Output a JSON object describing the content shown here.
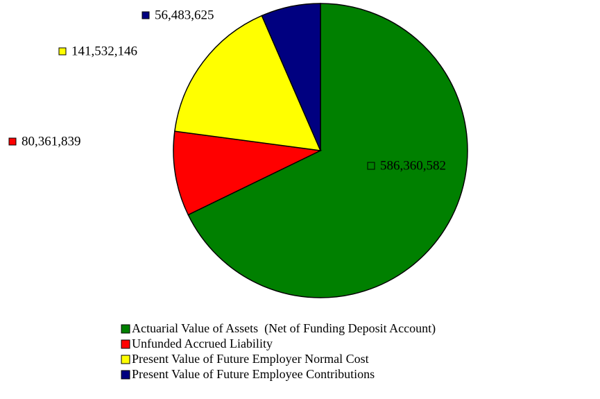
{
  "chart_data": {
    "type": "pie",
    "categories": [
      "Actuarial Value of Assets  (Net of Funding Deposit Account)",
      "Unfunded Accrued Liability",
      "Present Value of Future Employer Normal Cost",
      "Present Value of Future Employee Contributions"
    ],
    "values": [
      586360582,
      80361839,
      141532146,
      56483625
    ],
    "value_labels": [
      "586,360,582",
      "80,361,839",
      "141,532,146",
      "56,483,625"
    ],
    "colors": [
      "#008000",
      "#ff0000",
      "#ffff00",
      "#000080"
    ]
  }
}
